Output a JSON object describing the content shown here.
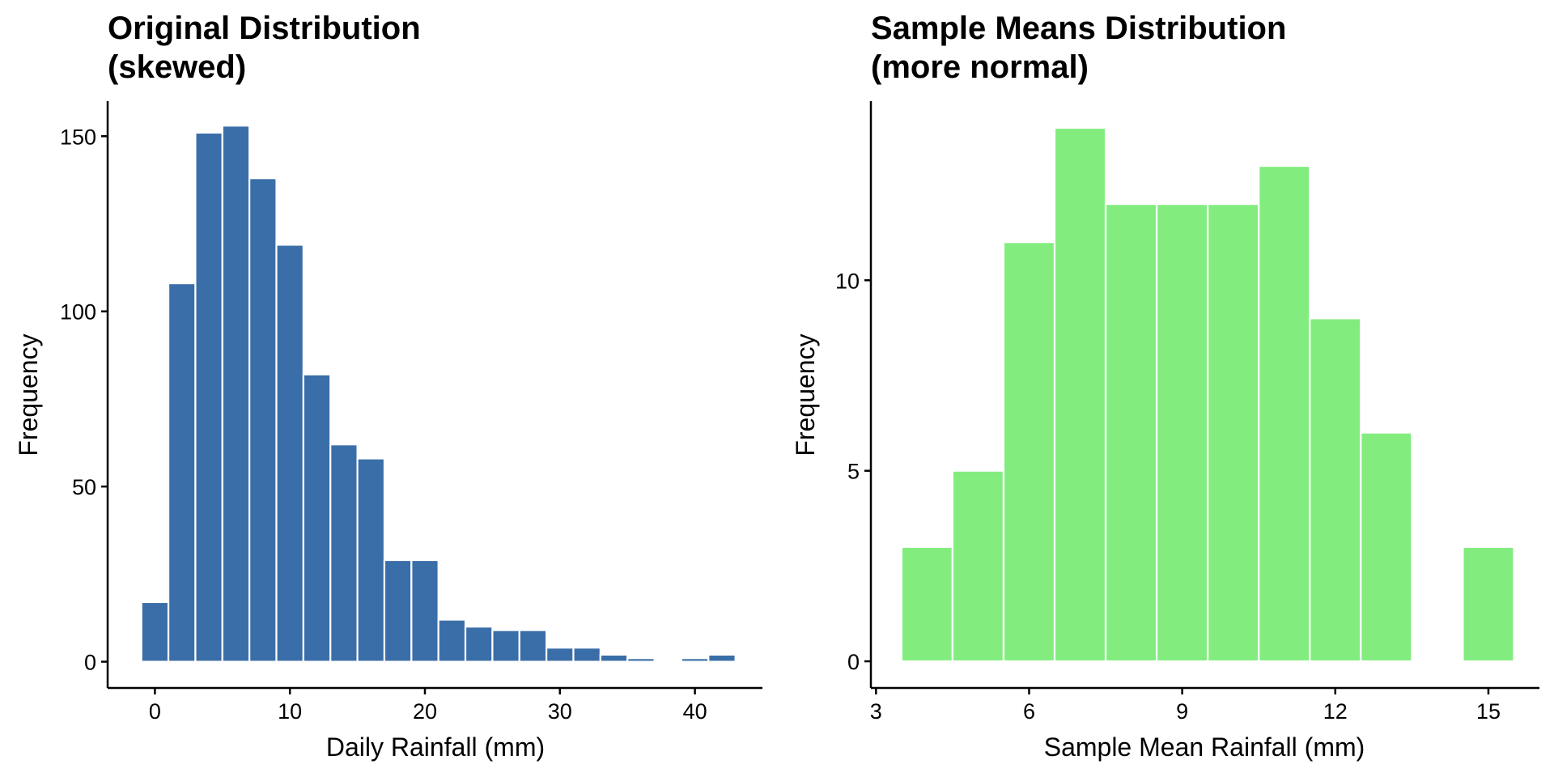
{
  "chart_data": [
    {
      "type": "bar",
      "subtype": "histogram",
      "title_lines": [
        "Original Distribution",
        "(skewed)"
      ],
      "xlabel": "Daily Rainfall (mm)",
      "ylabel": "Frequency",
      "bar_color": "#3A6EA8",
      "bin_width": 2,
      "xlim": [
        -3.5,
        45
      ],
      "ylim": [
        -7.5,
        160
      ],
      "x_ticks": [
        0,
        10,
        20,
        30,
        40
      ],
      "y_ticks": [
        0,
        50,
        100,
        150
      ],
      "grid": false,
      "legend": "none",
      "bins_x_center": [
        0,
        2,
        4,
        6,
        8,
        10,
        12,
        14,
        16,
        18,
        20,
        22,
        24,
        26,
        28,
        30,
        32,
        34,
        36,
        38,
        40,
        42
      ],
      "values": [
        17,
        108,
        151,
        153,
        138,
        119,
        82,
        62,
        58,
        29,
        29,
        12,
        10,
        9,
        9,
        4,
        4,
        2,
        1,
        0,
        1,
        2
      ]
    },
    {
      "type": "bar",
      "subtype": "histogram",
      "title_lines": [
        "Sample Means Distribution",
        "(more normal)"
      ],
      "xlabel": "Sample Mean Rainfall (mm)",
      "ylabel": "Frequency",
      "bar_color": "#82ED7E",
      "bin_width": 1,
      "xlim": [
        2.9,
        16
      ],
      "ylim": [
        -0.7,
        14.7
      ],
      "x_ticks": [
        3,
        6,
        9,
        12,
        15
      ],
      "y_ticks": [
        0,
        5,
        10
      ],
      "grid": false,
      "legend": "none",
      "bins_x_center": [
        4,
        5,
        6,
        7,
        8,
        9,
        10,
        11,
        12,
        13,
        14,
        15
      ],
      "values": [
        3,
        5,
        11,
        14,
        12,
        12,
        12,
        13,
        9,
        6,
        0,
        3
      ]
    }
  ]
}
